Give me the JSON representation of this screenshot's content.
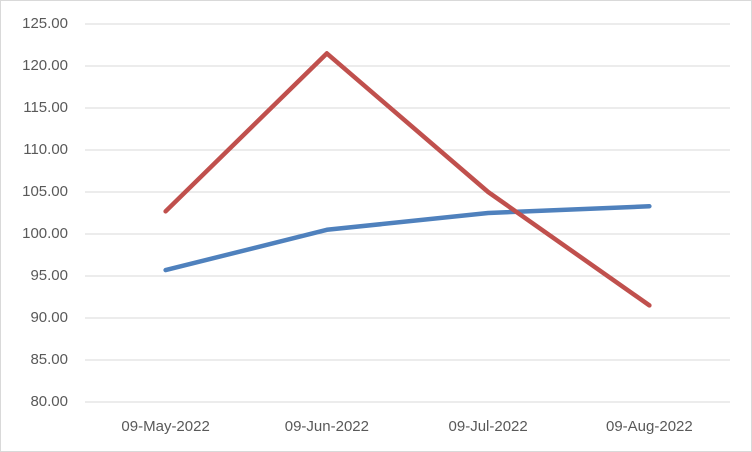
{
  "chart_data": {
    "type": "line",
    "categories": [
      "09-May-2022",
      "09-Jun-2022",
      "09-Jul-2022",
      "09-Aug-2022"
    ],
    "series": [
      {
        "color": "#4f81bd",
        "values": [
          95.7,
          100.5,
          102.5,
          103.3
        ]
      },
      {
        "color": "#c0504d",
        "values": [
          102.7,
          121.5,
          105.0,
          91.5
        ]
      }
    ],
    "ylim": [
      80,
      125
    ],
    "yticks": [
      {
        "value": 80,
        "label": "80.00"
      },
      {
        "value": 85,
        "label": "85.00"
      },
      {
        "value": 90,
        "label": "90.00"
      },
      {
        "value": 95,
        "label": "95.00"
      },
      {
        "value": 100,
        "label": "100.00"
      },
      {
        "value": 105,
        "label": "105.00"
      },
      {
        "value": 110,
        "label": "110.00"
      },
      {
        "value": 115,
        "label": "115.00"
      },
      {
        "value": 120,
        "label": "120.00"
      },
      {
        "value": 125,
        "label": "125.00"
      }
    ],
    "grid": true
  }
}
